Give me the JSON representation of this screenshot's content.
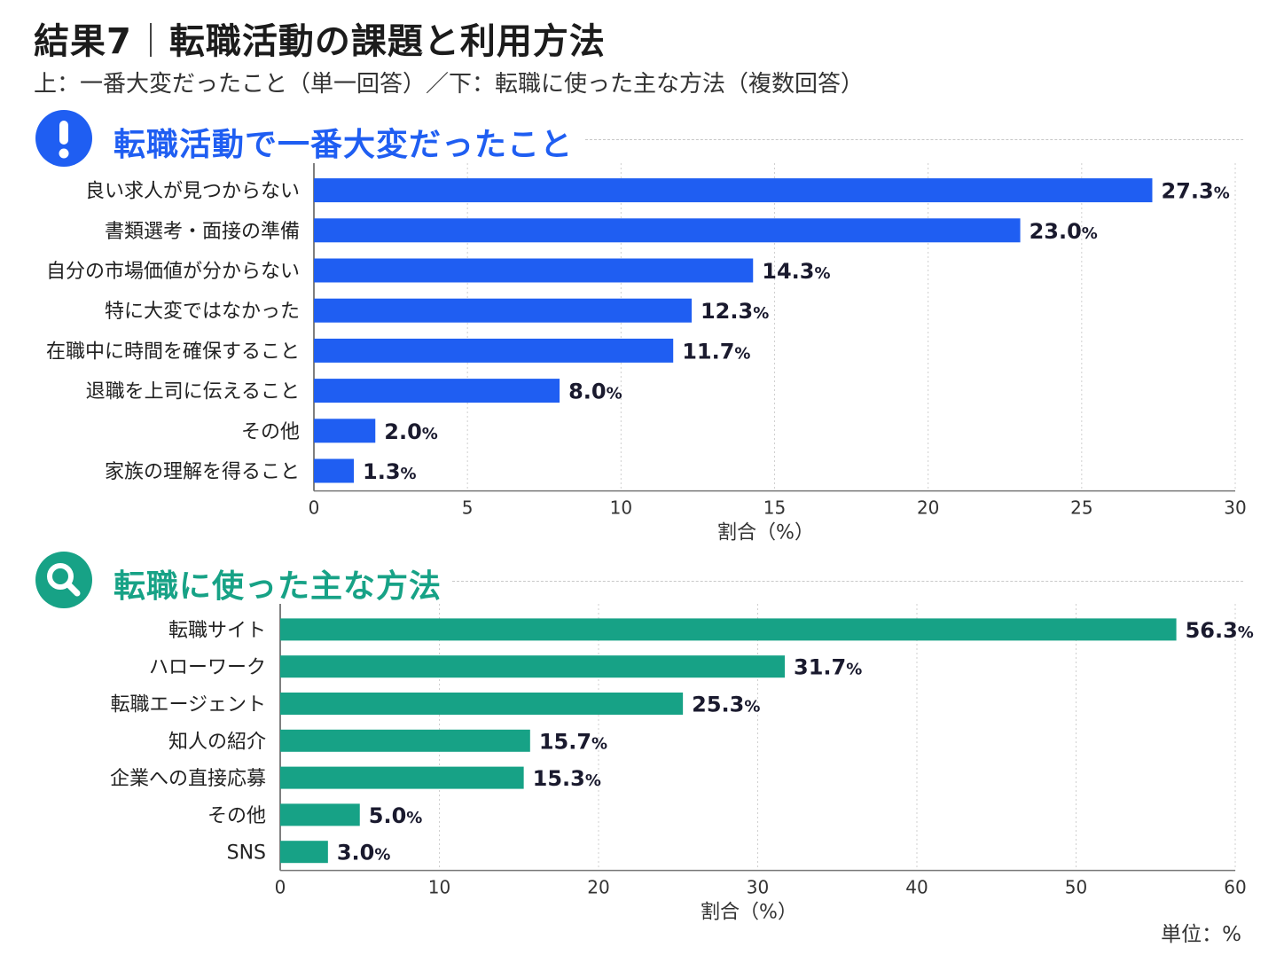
{
  "header": {
    "title_main": "結果7",
    "title_rest": "転職活動の課題と利用方法",
    "subtitle": "上：一番大変だったこと（単一回答）／下：転職に使った主な方法（複数回答）"
  },
  "colors": {
    "blue": "#1f5ef2",
    "green": "#17a286"
  },
  "sections": [
    {
      "title": "転職活動で一番大変だったこと",
      "icon": "exclamation-icon"
    },
    {
      "title": "転職に使った主な方法",
      "icon": "search-icon"
    }
  ],
  "unit_label": "単位：%",
  "chart_data": [
    {
      "type": "bar",
      "orientation": "horizontal",
      "categories": [
        "良い求人が見つからない",
        "書類選考・面接の準備",
        "自分の市場価値が分からない",
        "特に大変ではなかった",
        "在職中に時間を確保すること",
        "退職を上司に伝えること",
        "その他",
        "家族の理解を得ること"
      ],
      "values": [
        27.3,
        23.0,
        14.3,
        12.3,
        11.7,
        8.0,
        2.0,
        1.3
      ],
      "value_labels": [
        "27.3",
        "23.0",
        "14.3",
        "12.3",
        "11.7",
        "8.0",
        "2.0",
        "1.3"
      ],
      "value_suffix": "%",
      "xlabel": "割合（%）",
      "xlim": [
        0,
        30
      ],
      "xticks": [
        0,
        5,
        10,
        15,
        20,
        25,
        30
      ],
      "grid": true,
      "color": "#1f5ef2"
    },
    {
      "type": "bar",
      "orientation": "horizontal",
      "categories": [
        "転職サイト",
        "ハローワーク",
        "転職エージェント",
        "知人の紹介",
        "企業への直接応募",
        "その他",
        "SNS"
      ],
      "values": [
        56.3,
        31.7,
        25.3,
        15.7,
        15.3,
        5.0,
        3.0
      ],
      "value_labels": [
        "56.3",
        "31.7",
        "25.3",
        "15.7",
        "15.3",
        "5.0",
        "3.0"
      ],
      "value_suffix": "%",
      "xlabel": "割合（%）",
      "xlim": [
        0,
        60
      ],
      "xticks": [
        0,
        10,
        20,
        30,
        40,
        50,
        60
      ],
      "grid": true,
      "color": "#17a286"
    }
  ]
}
